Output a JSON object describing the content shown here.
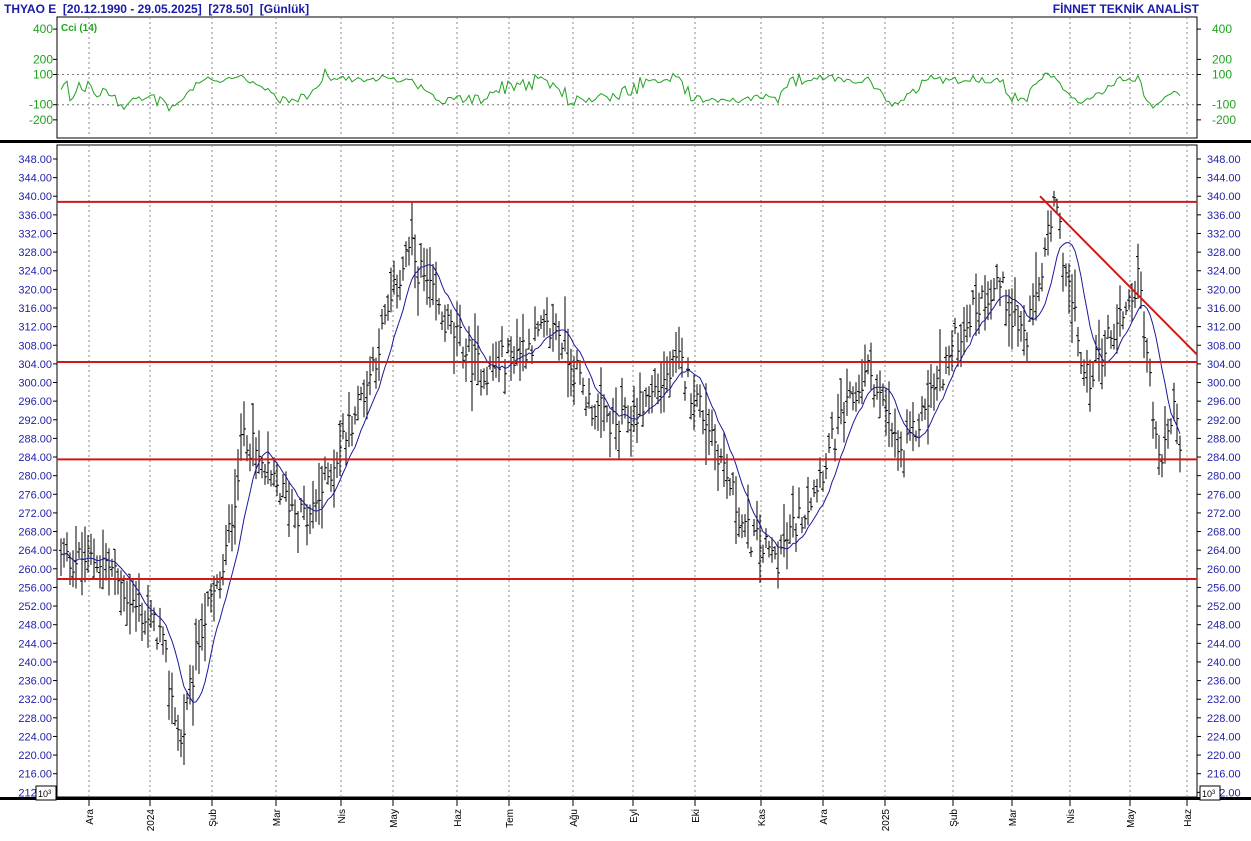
{
  "header": {
    "symbol": "THYAO E",
    "date_range": "[20.12.1990 - 29.05.2025]",
    "last_price": "[278.50]",
    "period": "[Günlük]",
    "brand": "FİNNET TEKNİK ANALİST"
  },
  "indicator": {
    "label": "Cci (14)",
    "ticks": [
      "400",
      "200",
      "100",
      "-100",
      "-200"
    ],
    "tick_values": [
      400,
      200,
      100,
      -100,
      -200
    ],
    "ref_levels": [
      100,
      -100
    ],
    "ylim": [
      -320,
      480
    ],
    "color": "#1fa31f"
  },
  "chart_data": {
    "type": "ohlc",
    "price_ticks": [
      "348.00",
      "344.00",
      "340.00",
      "336.00",
      "332.00",
      "328.00",
      "324.00",
      "320.00",
      "316.00",
      "312.00",
      "308.00",
      "304.00",
      "300.00",
      "296.00",
      "292.00",
      "288.00",
      "284.00",
      "280.00",
      "276.00",
      "272.00",
      "268.00",
      "264.00",
      "260.00",
      "256.00",
      "252.00",
      "248.00",
      "244.00",
      "240.00",
      "236.00",
      "232.00",
      "228.00",
      "224.00",
      "220.00",
      "216.00",
      "212.00"
    ],
    "ylim": [
      211,
      351
    ],
    "multiplier_label": "10^3",
    "x_labels": [
      "Ara",
      "2024",
      "Şub",
      "Mar",
      "Nis",
      "May",
      "Haz",
      "Tem",
      "Ağu",
      "Eyl",
      "Eki",
      "Kas",
      "Ara",
      "2025",
      "Şub",
      "Mar",
      "Nis",
      "May",
      "Haz"
    ],
    "horizontal_levels": [
      338.8,
      304.4,
      283.5,
      257.8
    ],
    "trendline": {
      "from": {
        "month": "Mar 2025",
        "price": 340.0
      },
      "to": {
        "month": "Haz 2025",
        "price": 306.0
      }
    },
    "ma_label": "",
    "series_color": "#000000",
    "ma_color": "#1a1a9e",
    "level_color": "#d01818",
    "anchors": [
      {
        "month": "Ara 2023",
        "price": 262
      },
      {
        "month": "Ara 2023",
        "price": 252
      },
      {
        "month": "Oca 2024",
        "price": 246
      },
      {
        "month": "Oca 2024",
        "price": 222
      },
      {
        "month": "Oca 2024",
        "price": 248
      },
      {
        "month": "Şub 2024",
        "price": 258
      },
      {
        "month": "Şub 2024",
        "price": 290
      },
      {
        "month": "Şub 2024",
        "price": 280
      },
      {
        "month": "Mar 2024",
        "price": 270
      },
      {
        "month": "Nis 2024",
        "price": 300
      },
      {
        "month": "May 2024",
        "price": 329
      },
      {
        "month": "May 2024",
        "price": 314
      },
      {
        "month": "Haz 2024",
        "price": 302
      },
      {
        "month": "Tem 2024",
        "price": 308
      },
      {
        "month": "Tem 2024",
        "price": 312
      },
      {
        "month": "Ağu 2024",
        "price": 296
      },
      {
        "month": "Ağu 2024",
        "price": 290
      },
      {
        "month": "Eyl 2024",
        "price": 297
      },
      {
        "month": "Eyl 2024",
        "price": 304
      },
      {
        "month": "Eki 2024",
        "price": 290
      },
      {
        "month": "Eki 2024",
        "price": 268
      },
      {
        "month": "Kas 2024",
        "price": 262
      },
      {
        "month": "Kas 2024",
        "price": 274
      },
      {
        "month": "Ara 2024",
        "price": 290
      },
      {
        "month": "Ara 2024",
        "price": 303
      },
      {
        "month": "Oca 2025",
        "price": 283
      },
      {
        "month": "Oca 2025",
        "price": 300
      },
      {
        "month": "Şub 2025",
        "price": 314
      },
      {
        "month": "Şub 2025",
        "price": 322
      },
      {
        "month": "Mar 2025",
        "price": 309
      },
      {
        "month": "Mar 2025",
        "price": 338
      },
      {
        "month": "Nis 2025",
        "price": 300
      },
      {
        "month": "Nis 2025",
        "price": 312
      },
      {
        "month": "May 2025",
        "price": 322
      },
      {
        "month": "May 2025",
        "price": 282
      },
      {
        "month": "May 2025",
        "price": 296
      },
      {
        "month": "Haz 2025",
        "price": 278.5
      }
    ]
  }
}
